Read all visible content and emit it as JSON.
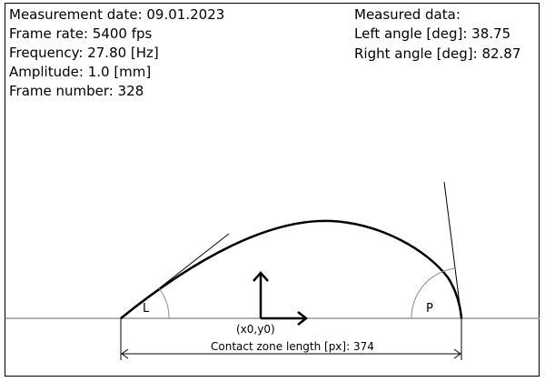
{
  "measurement": {
    "date_text": "Measurement date: 09.01.2023",
    "frame_rate_text": "Frame rate: 5400 fps",
    "frequency_text": "Frequency: 27.80 [Hz]",
    "amplitude_text": "Amplitude: 1.0 [mm]",
    "frame_number_text": "Frame number: 328"
  },
  "measured": {
    "heading": "Measured data:",
    "left_angle_text": "Left angle [deg]: 38.75",
    "right_angle_text": "Right angle [deg]: 82.87"
  },
  "diagram": {
    "left_label": "L",
    "right_label": "P",
    "origin_label": "(x0,y0)",
    "contact_zone_text": "Contact zone length [px]: 374"
  },
  "colors": {
    "profile": "#000000",
    "baseline": "#999999",
    "tangent": "#000000",
    "arc": "#8c8c8c"
  }
}
